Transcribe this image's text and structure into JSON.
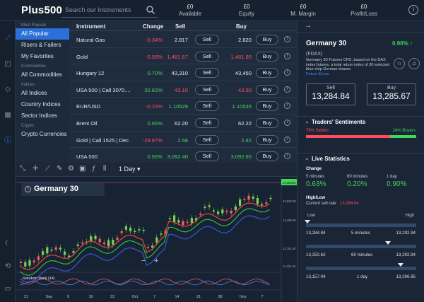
{
  "brand": {
    "logo": "Plus500"
  },
  "search": {
    "placeholder": "Search our Instruments"
  },
  "account": [
    {
      "value": "£0",
      "label": "Available"
    },
    {
      "value": "£0",
      "label": "Equity"
    },
    {
      "value": "£0",
      "label": "M. Margin"
    },
    {
      "value": "£0",
      "label": "Profit/Loss"
    }
  ],
  "categories": {
    "most_popular_header": "Most Popular",
    "most_popular": [
      "All Popular",
      "Risers & Fallers",
      "My Favorites"
    ],
    "commodities_header": "Commodities",
    "commodities": [
      "All Commodities"
    ],
    "indices_header": "Indices",
    "indices": [
      "All Indices",
      "Country Indices",
      "Sector Indices"
    ],
    "crypto_header": "Crypto",
    "crypto": [
      "Crypto Currencies"
    ]
  },
  "table": {
    "headers": {
      "instrument": "Instrument",
      "change": "Change",
      "sell": "Sell",
      "buy": "Buy"
    },
    "sell_label": "Sell",
    "buy_label": "Buy",
    "rows": [
      {
        "name": "Natural Gas",
        "change": "-0.34%",
        "sell": "2.817",
        "buy": "2.820",
        "dir": "neg",
        "pc": "wht"
      },
      {
        "name": "Gold",
        "change": "-0.58%",
        "sell": "1,481.67",
        "buy": "1,481.95",
        "dir": "neg",
        "pc": "neg"
      },
      {
        "name": "Hungary 12",
        "change": "0.70%",
        "sell": "43,310",
        "buy": "43,450",
        "dir": "pos",
        "pc": "wht"
      },
      {
        "name": "USA 500 | Call 3070....",
        "change": "30.83%",
        "sell": "43.10",
        "buy": "43.90",
        "dir": "pos",
        "pc": "neg"
      },
      {
        "name": "EUR/USD",
        "change": "-0.15%",
        "sell": "1.10529",
        "buy": "1.10535",
        "dir": "neg",
        "pc": "pos"
      },
      {
        "name": "Brent Oil",
        "change": "0.66%",
        "sell": "62.20",
        "buy": "62.22",
        "dir": "pos",
        "pc": "wht"
      },
      {
        "name": "Gold | Call 1525 | Dec",
        "change": "-29.87%",
        "sell": "2.58",
        "buy": "2.82",
        "dir": "neg",
        "pc": "pos"
      },
      {
        "name": "USA 500",
        "change": "0.56%",
        "sell": "3,092.40",
        "buy": "3,092.65",
        "dir": "pos",
        "pc": "pos"
      }
    ]
  },
  "chart": {
    "title": "Germany 30",
    "timeframe": "1 Day",
    "indicator": "Random Walk (14)",
    "y_ticks": [
      "13,284.84",
      "12,832.58",
      "12,495.00",
      "11,781.50",
      "11,331.50"
    ],
    "x_ticks": [
      "21",
      "Sep",
      "9",
      "16",
      "23",
      "Oct",
      "7",
      "14",
      "21",
      "28",
      "Nov",
      "7"
    ],
    "zoom_out": "−",
    "zoom_in": "+"
  },
  "instrument": {
    "back": "→",
    "name": "Germany 30",
    "change": "0.90%",
    "symbol": "(FDAX)",
    "description": "Germany 30 Futures CFD, based on the DAX index futures, a total return index of 30 selected blue-chip German shares.",
    "link": "Future-Euros",
    "sell_label": "Sell",
    "sell_price": "13,284.84",
    "buy_label": "Buy",
    "buy_price": "13,285.67"
  },
  "sentiment": {
    "title": "Traders' Sentiments",
    "sellers": "76% Sellers",
    "buyers": "24% Buyers",
    "sellers_fraction": 0.76
  },
  "live": {
    "title": "Live Statistics",
    "change_label": "Change",
    "periods": [
      {
        "label": "5 minutes",
        "value": "0.63%"
      },
      {
        "label": "60 minutes",
        "value": "0.20%"
      },
      {
        "label": "1 day",
        "value": "0.90%"
      }
    ],
    "highlow_label": "High/Low",
    "current_rate_label": "Current sell rate",
    "current_rate": "13,284.84",
    "low_label": "Low",
    "high_label": "High",
    "ranges": [
      {
        "low": "13,284.84",
        "period": "5 minutes",
        "high": "13,292.94"
      },
      {
        "low": "13,250.62",
        "period": "60 minutes",
        "high": "13,292.94"
      },
      {
        "low": "13,157.04",
        "period": "1 day",
        "high": "13,296.95"
      }
    ]
  }
}
